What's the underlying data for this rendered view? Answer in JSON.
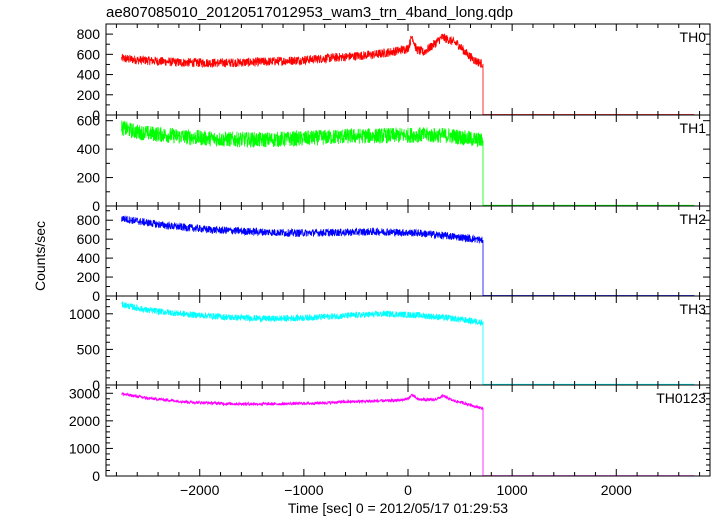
{
  "chart_data": {
    "type": "line",
    "title": "ae807085010_20120517012953_wam3_trn_4band_long.qdp",
    "xlabel": "Time [sec] 0 = 2012/05/17 01:29:53",
    "ylabel": "Counts/sec",
    "xlim": [
      -2900,
      2900
    ],
    "x_ticks": [
      -2000,
      1000,
      0,
      1000,
      2000
    ],
    "x_tick_labels": [
      "−2000",
      "−1000",
      "0",
      "1000",
      "2000"
    ],
    "grid": false,
    "data_end_x": 2750,
    "drop_x": 720,
    "panels": [
      {
        "name": "TH0",
        "color": "#ff0000",
        "ylim": [
          0,
          900
        ],
        "yticks": [
          0,
          200,
          400,
          600,
          800
        ],
        "noise": 45,
        "series": [
          [
            -2750,
            560
          ],
          [
            -2600,
            545
          ],
          [
            -2200,
            520
          ],
          [
            -1800,
            515
          ],
          [
            -1400,
            525
          ],
          [
            -1000,
            545
          ],
          [
            -600,
            575
          ],
          [
            -300,
            600
          ],
          [
            -100,
            635
          ],
          [
            0,
            660
          ],
          [
            40,
            780
          ],
          [
            80,
            650
          ],
          [
            150,
            620
          ],
          [
            250,
            700
          ],
          [
            330,
            770
          ],
          [
            400,
            740
          ],
          [
            480,
            700
          ],
          [
            560,
            610
          ],
          [
            640,
            540
          ],
          [
            715,
            505
          ],
          [
            720,
            5
          ],
          [
            2750,
            5
          ]
        ]
      },
      {
        "name": "TH1",
        "color": "#00ff00",
        "ylim": [
          0,
          640
        ],
        "yticks": [
          0,
          200,
          400,
          600
        ],
        "noise": 55,
        "series": [
          [
            -2750,
            550
          ],
          [
            -2600,
            520
          ],
          [
            -2200,
            490
          ],
          [
            -1800,
            470
          ],
          [
            -1400,
            465
          ],
          [
            -1000,
            475
          ],
          [
            -600,
            490
          ],
          [
            -200,
            495
          ],
          [
            100,
            500
          ],
          [
            400,
            495
          ],
          [
            715,
            460
          ],
          [
            720,
            5
          ],
          [
            2750,
            5
          ]
        ]
      },
      {
        "name": "TH2",
        "color": "#0000ff",
        "ylim": [
          0,
          950
        ],
        "yticks": [
          0,
          200,
          400,
          600,
          800
        ],
        "noise": 40,
        "series": [
          [
            -2750,
            820
          ],
          [
            -2600,
            790
          ],
          [
            -2300,
            740
          ],
          [
            -1900,
            700
          ],
          [
            -1500,
            680
          ],
          [
            -1100,
            665
          ],
          [
            -700,
            670
          ],
          [
            -300,
            680
          ],
          [
            100,
            665
          ],
          [
            500,
            620
          ],
          [
            715,
            590
          ],
          [
            720,
            5
          ],
          [
            2750,
            5
          ]
        ]
      },
      {
        "name": "TH3",
        "color": "#00ffff",
        "ylim": [
          0,
          1250
        ],
        "yticks": [
          0,
          500,
          1000
        ],
        "noise": 45,
        "series": [
          [
            -2750,
            1130
          ],
          [
            -2500,
            1050
          ],
          [
            -2100,
            990
          ],
          [
            -1700,
            950
          ],
          [
            -1300,
            930
          ],
          [
            -900,
            950
          ],
          [
            -500,
            980
          ],
          [
            -200,
            1000
          ],
          [
            100,
            980
          ],
          [
            400,
            940
          ],
          [
            715,
            880
          ],
          [
            720,
            10
          ],
          [
            2750,
            10
          ]
        ]
      },
      {
        "name": "TH0123",
        "color": "#ff00ff",
        "ylim": [
          0,
          3300
        ],
        "yticks": [
          0,
          1000,
          2000,
          3000
        ],
        "noise": 55,
        "series": [
          [
            -2750,
            2980
          ],
          [
            -2500,
            2820
          ],
          [
            -2100,
            2680
          ],
          [
            -1700,
            2620
          ],
          [
            -1300,
            2610
          ],
          [
            -900,
            2640
          ],
          [
            -500,
            2700
          ],
          [
            -100,
            2740
          ],
          [
            0,
            2800
          ],
          [
            40,
            2950
          ],
          [
            90,
            2780
          ],
          [
            250,
            2760
          ],
          [
            340,
            2900
          ],
          [
            420,
            2750
          ],
          [
            560,
            2620
          ],
          [
            715,
            2450
          ],
          [
            720,
            10
          ],
          [
            2750,
            10
          ]
        ]
      }
    ]
  }
}
